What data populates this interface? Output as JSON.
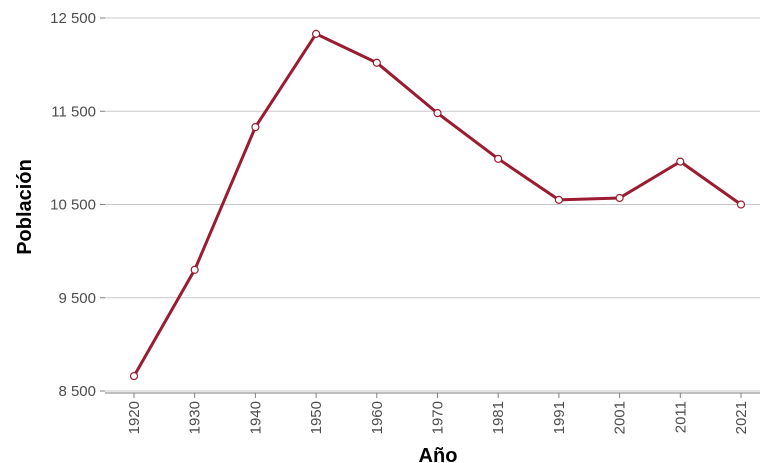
{
  "chart_data": {
    "type": "line",
    "title": "",
    "xlabel": "Año",
    "ylabel": "Población",
    "categories": [
      "1920",
      "1930",
      "1940",
      "1950",
      "1960",
      "1970",
      "1981",
      "1991",
      "2001",
      "2011",
      "2021"
    ],
    "series": [
      {
        "values": [
          8660,
          9800,
          11330,
          12330,
          12020,
          11480,
          10990,
          10550,
          10570,
          10960,
          10500
        ]
      }
    ],
    "ylim": [
      8500,
      12500
    ],
    "yticks": [
      8500,
      9500,
      10500,
      11500,
      12500
    ],
    "ytick_labels": [
      "8 500",
      "9 500",
      "10 500",
      "11 500",
      "12 500"
    ],
    "grid": "horizontal",
    "colors": {
      "line": "#9b1b30",
      "marker": "#9b1b30"
    }
  }
}
